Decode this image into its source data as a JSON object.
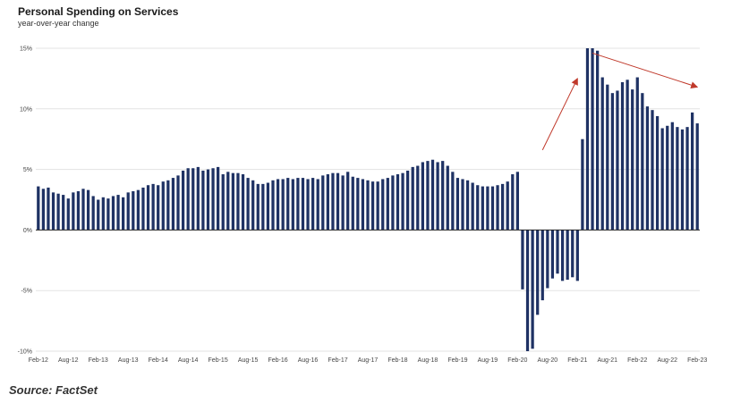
{
  "title": "Personal Spending on Services",
  "subtitle": "year-over-year change",
  "source": "Source: FactSet",
  "colors": {
    "bar": "#1f3264",
    "grid": "#e3e3e3",
    "axis": "#222222",
    "arrow": "#c0392b"
  },
  "chart_data": {
    "type": "bar",
    "title": "Personal Spending on Services",
    "subtitle": "year-over-year change",
    "xlabel": "",
    "ylabel": "",
    "ylim": [
      -10,
      15
    ],
    "grid": true,
    "yticks": [
      "15%",
      "10%",
      "5%",
      "0%",
      "-5%",
      "-10%"
    ],
    "ytick_values": [
      15,
      10,
      5,
      0,
      -5,
      -10
    ],
    "xticks": [
      "Feb-12",
      "Aug-12",
      "Feb-13",
      "Aug-13",
      "Feb-14",
      "Aug-14",
      "Feb-15",
      "Aug-15",
      "Feb-16",
      "Aug-16",
      "Feb-17",
      "Aug-17",
      "Feb-18",
      "Aug-18",
      "Feb-19",
      "Aug-19",
      "Feb-20",
      "Aug-20",
      "Feb-21",
      "Aug-21",
      "Feb-22",
      "Aug-22",
      "Feb-23"
    ],
    "start": "Feb-12",
    "frequency": "monthly",
    "values": [
      3.6,
      3.4,
      3.5,
      3.1,
      3.0,
      2.9,
      2.6,
      3.1,
      3.2,
      3.4,
      3.3,
      2.8,
      2.5,
      2.7,
      2.6,
      2.8,
      2.9,
      2.7,
      3.1,
      3.2,
      3.3,
      3.5,
      3.7,
      3.8,
      3.7,
      4.0,
      4.1,
      4.3,
      4.5,
      4.9,
      5.1,
      5.1,
      5.2,
      4.9,
      5.0,
      5.1,
      5.2,
      4.6,
      4.8,
      4.7,
      4.7,
      4.6,
      4.3,
      4.1,
      3.8,
      3.8,
      3.9,
      4.1,
      4.2,
      4.2,
      4.3,
      4.2,
      4.3,
      4.3,
      4.2,
      4.3,
      4.2,
      4.5,
      4.6,
      4.7,
      4.7,
      4.5,
      4.8,
      4.4,
      4.3,
      4.2,
      4.1,
      4.0,
      4.0,
      4.2,
      4.3,
      4.5,
      4.6,
      4.7,
      4.9,
      5.2,
      5.3,
      5.6,
      5.7,
      5.8,
      5.6,
      5.7,
      5.3,
      4.8,
      4.3,
      4.2,
      4.1,
      3.9,
      3.7,
      3.6,
      3.6,
      3.6,
      3.7,
      3.8,
      4.0,
      4.6,
      4.8,
      -4.9,
      -10.0,
      -9.8,
      -7.0,
      -5.8,
      -4.8,
      -4.0,
      -3.6,
      -4.2,
      -4.1,
      -3.9,
      -4.2,
      7.5,
      15.0,
      15.0,
      14.8,
      12.6,
      12.0,
      11.3,
      11.5,
      12.2,
      12.4,
      11.6,
      12.6,
      11.3,
      10.2,
      9.9,
      9.4,
      8.4,
      8.6,
      8.9,
      8.5,
      8.3,
      8.5,
      9.7,
      8.8
    ]
  },
  "annotations": [
    {
      "type": "arrow",
      "meaning": "rising trend",
      "from": {
        "x": "Jul-20",
        "y": 6.6
      },
      "to": {
        "x": "Feb-21",
        "y": 12.5
      }
    },
    {
      "type": "arrow",
      "meaning": "declining trend",
      "from": {
        "x": "May-21",
        "y": 14.6
      },
      "to": {
        "x": "Feb-23",
        "y": 11.8
      }
    }
  ]
}
